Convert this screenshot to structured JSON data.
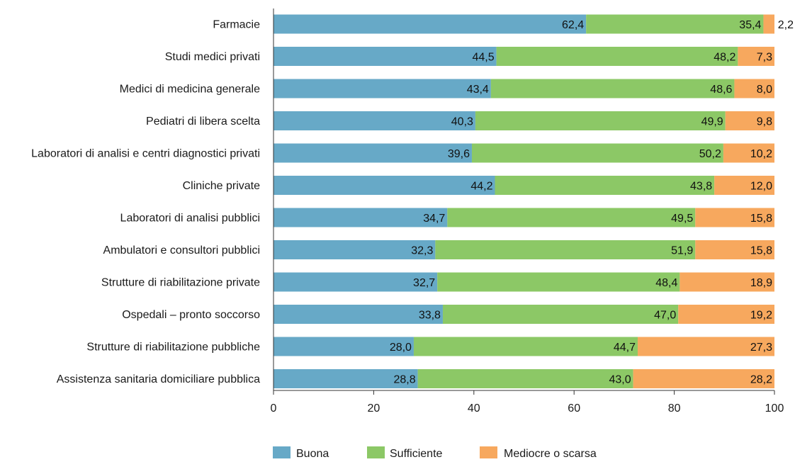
{
  "chart_data": {
    "type": "bar",
    "orientation": "horizontal",
    "stacked": true,
    "title": "",
    "xlabel": "",
    "ylabel": "",
    "xlim": [
      0,
      100
    ],
    "xticks": [
      0,
      20,
      40,
      60,
      80,
      100
    ],
    "grid": false,
    "legend_position": "bottom",
    "categories": [
      "Farmacie",
      "Studi medici privati",
      "Medici di medicina generale",
      "Pediatri di libera scelta",
      "Laboratori di analisi e centri diagnostici privati",
      "Cliniche private",
      "Laboratori di analisi pubblici",
      "Ambulatori e consultori pubblici",
      "Strutture di riabilitazione private",
      "Ospedali – pronto soccorso",
      "Strutture di riabilitazione pubbliche",
      "Assistenza sanitaria domiciliare pubblica"
    ],
    "series": [
      {
        "name": "Buona",
        "color": "#67a9c7",
        "values": [
          62.4,
          44.5,
          43.4,
          40.3,
          39.6,
          44.2,
          34.7,
          32.3,
          32.7,
          33.8,
          28.0,
          28.8
        ],
        "labels": [
          "62,4",
          "44,5",
          "43,4",
          "40,3",
          "39,6",
          "44,2",
          "34,7",
          "32,3",
          "32,7",
          "33,8",
          "28,0",
          "28,8"
        ]
      },
      {
        "name": "Sufficiente",
        "color": "#8cc866",
        "values": [
          35.4,
          48.2,
          48.6,
          49.9,
          50.2,
          43.8,
          49.5,
          51.9,
          48.4,
          47.0,
          44.7,
          43.0
        ],
        "labels": [
          "35,4",
          "48,2",
          "48,6",
          "49,9",
          "50,2",
          "43,8",
          "49,5",
          "51,9",
          "48,4",
          "47,0",
          "44,7",
          "43,0"
        ]
      },
      {
        "name": "Mediocre o scarsa",
        "color": "#f7a85e",
        "values": [
          2.2,
          7.3,
          8.0,
          9.8,
          10.2,
          12.0,
          15.8,
          15.8,
          18.9,
          19.2,
          27.3,
          28.2
        ],
        "labels": [
          "2,2",
          "7,3",
          "8,0",
          "9,8",
          "10,2",
          "12,0",
          "15,8",
          "15,8",
          "18,9",
          "19,2",
          "27,3",
          "28,2"
        ]
      }
    ]
  }
}
